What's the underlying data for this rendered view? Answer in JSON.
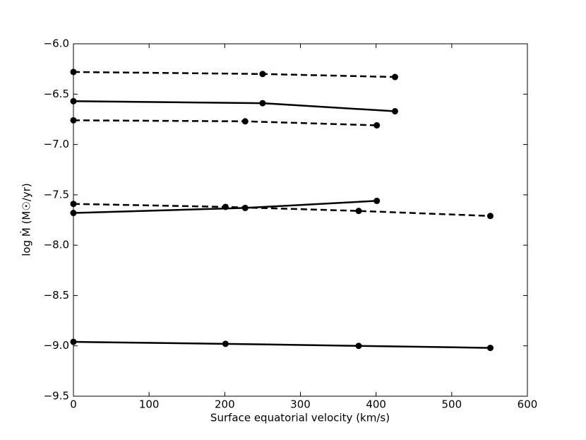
{
  "chart_data": {
    "type": "line",
    "xlabel": "Surface equatorial velocity (km/s)",
    "ylabel": "log Ṁ  (M☉/yr)",
    "xlim": [
      0,
      600
    ],
    "xticks": [
      0,
      100,
      200,
      300,
      400,
      500,
      600
    ],
    "ylim": [
      -9.5,
      -6.0
    ],
    "yticks": [
      {
        "value": -9.5,
        "label": "−9.5"
      },
      {
        "value": -9.0,
        "label": "−9.0"
      },
      {
        "value": -8.5,
        "label": "−8.5"
      },
      {
        "value": -8.0,
        "label": "−8.0"
      },
      {
        "value": -7.5,
        "label": "−7.5"
      },
      {
        "value": -7.0,
        "label": "−7.0"
      },
      {
        "value": -6.5,
        "label": "−6.5"
      },
      {
        "value": -6.0,
        "label": "−6.0"
      }
    ],
    "series": [
      {
        "color": "#000000",
        "linestyle": "dashed",
        "x": [
          0,
          250,
          425
        ],
        "values": [
          -6.28,
          -6.3,
          -6.33
        ]
      },
      {
        "color": "#000000",
        "linestyle": "solid",
        "x": [
          0,
          250,
          425
        ],
        "values": [
          -6.57,
          -6.59,
          -6.67
        ]
      },
      {
        "color": "#000000",
        "linestyle": "dashed",
        "x": [
          0,
          227,
          401
        ],
        "values": [
          -6.76,
          -6.77,
          -6.81
        ]
      },
      {
        "color": "#000000",
        "linestyle": "solid",
        "x": [
          0,
          227,
          401
        ],
        "values": [
          -7.68,
          -7.63,
          -7.56
        ]
      },
      {
        "color": "#000000",
        "linestyle": "dashed",
        "x": [
          0,
          201,
          377,
          551
        ],
        "values": [
          -7.59,
          -7.62,
          -7.66,
          -7.71
        ]
      },
      {
        "color": "#000000",
        "linestyle": "solid",
        "x": [
          0,
          201,
          377,
          551
        ],
        "values": [
          -8.96,
          -8.98,
          -9.0,
          -9.02
        ]
      }
    ]
  }
}
